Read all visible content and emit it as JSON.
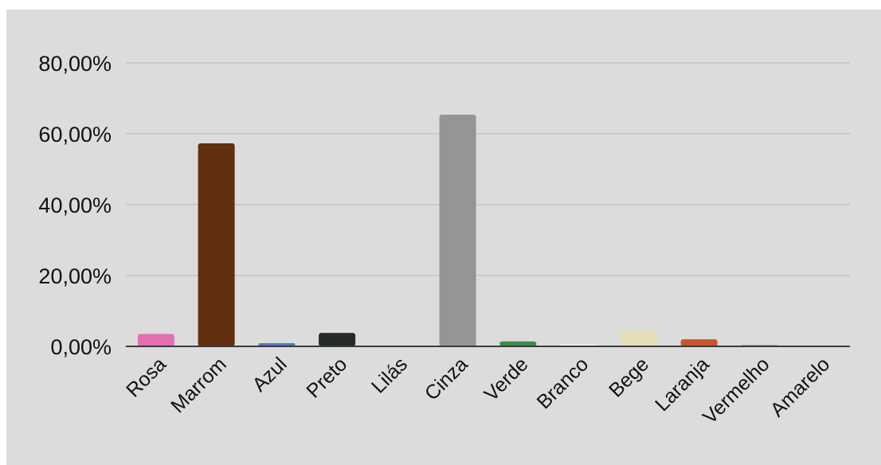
{
  "chart_data": {
    "type": "bar",
    "categories": [
      "Rosa",
      "Marrom",
      "Azul",
      "Preto",
      "Lilás",
      "Cinza",
      "Verde",
      "Branco",
      "Bege",
      "Laranja",
      "Vermelho",
      "Amarelo"
    ],
    "values": [
      3.5,
      57.3,
      0.9,
      3.8,
      0.1,
      65.4,
      1.4,
      0.6,
      4.5,
      2.0,
      0.3,
      0.3
    ],
    "colors": [
      "#e36fb0",
      "#61300f",
      "#4a78c0",
      "#262a27",
      "#c9b6d8",
      "#959595",
      "#3e8c4a",
      "#f2f2f2",
      "#e6dcb7",
      "#c8562b",
      "#b23a36",
      "#e2d29b"
    ],
    "ylim": [
      0,
      80
    ],
    "yticks": [
      "0,00%",
      "20,00%",
      "40,00%",
      "60,00%",
      "80,00%"
    ],
    "ytick_values": [
      0,
      20,
      40,
      60,
      80
    ],
    "title": "",
    "xlabel": "",
    "ylabel": "",
    "grid": true,
    "background": "#dcdcdc"
  }
}
